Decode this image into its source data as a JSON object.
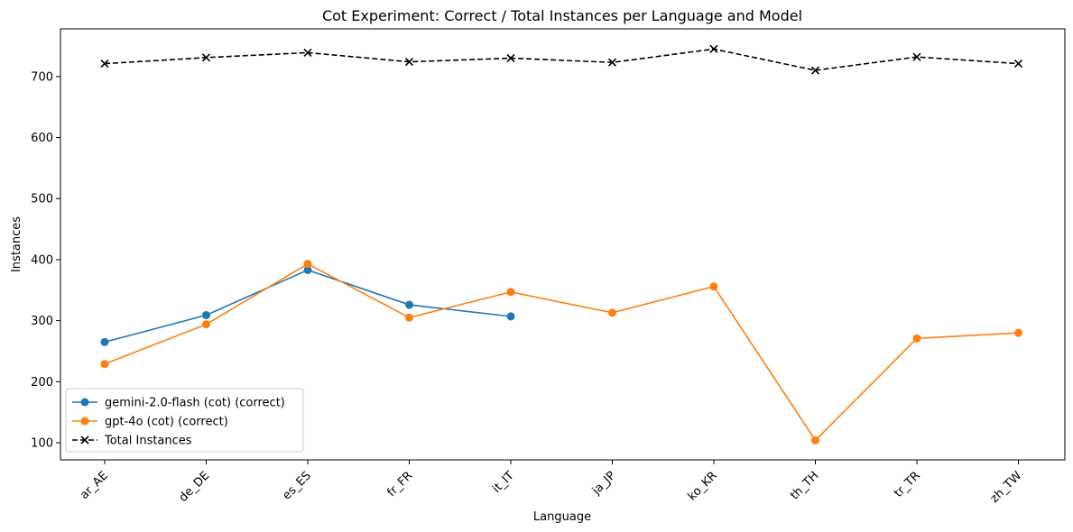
{
  "chart_data": {
    "type": "line",
    "title": "Cot Experiment: Correct / Total Instances per Language and Model",
    "xlabel": "Language",
    "ylabel": "Instances",
    "categories": [
      "ar_AE",
      "de_DE",
      "es_ES",
      "fr_FR",
      "it_IT",
      "ja_JP",
      "ko_KR",
      "th_TH",
      "tr_TR",
      "zh_TW"
    ],
    "ylim": [
      72,
      778
    ],
    "yticks": [
      100,
      200,
      300,
      400,
      500,
      600,
      700
    ],
    "grid": false,
    "legend_position": "lower-left",
    "series": [
      {
        "name": "gemini-2.0-flash (cot) (correct)",
        "color": "#1f77b4",
        "marker": "circle",
        "linestyle": "solid",
        "values": [
          265,
          309,
          383,
          326,
          307,
          null,
          null,
          null,
          null,
          null
        ]
      },
      {
        "name": "gpt-4o (cot) (correct)",
        "color": "#ff7f0e",
        "marker": "circle",
        "linestyle": "solid",
        "values": [
          229,
          294,
          393,
          305,
          347,
          313,
          356,
          104,
          271,
          280
        ]
      },
      {
        "name": "Total Instances",
        "color": "#000000",
        "marker": "x",
        "linestyle": "dashed",
        "values": [
          721,
          731,
          739,
          724,
          730,
          723,
          745,
          710,
          732,
          721
        ]
      }
    ]
  }
}
